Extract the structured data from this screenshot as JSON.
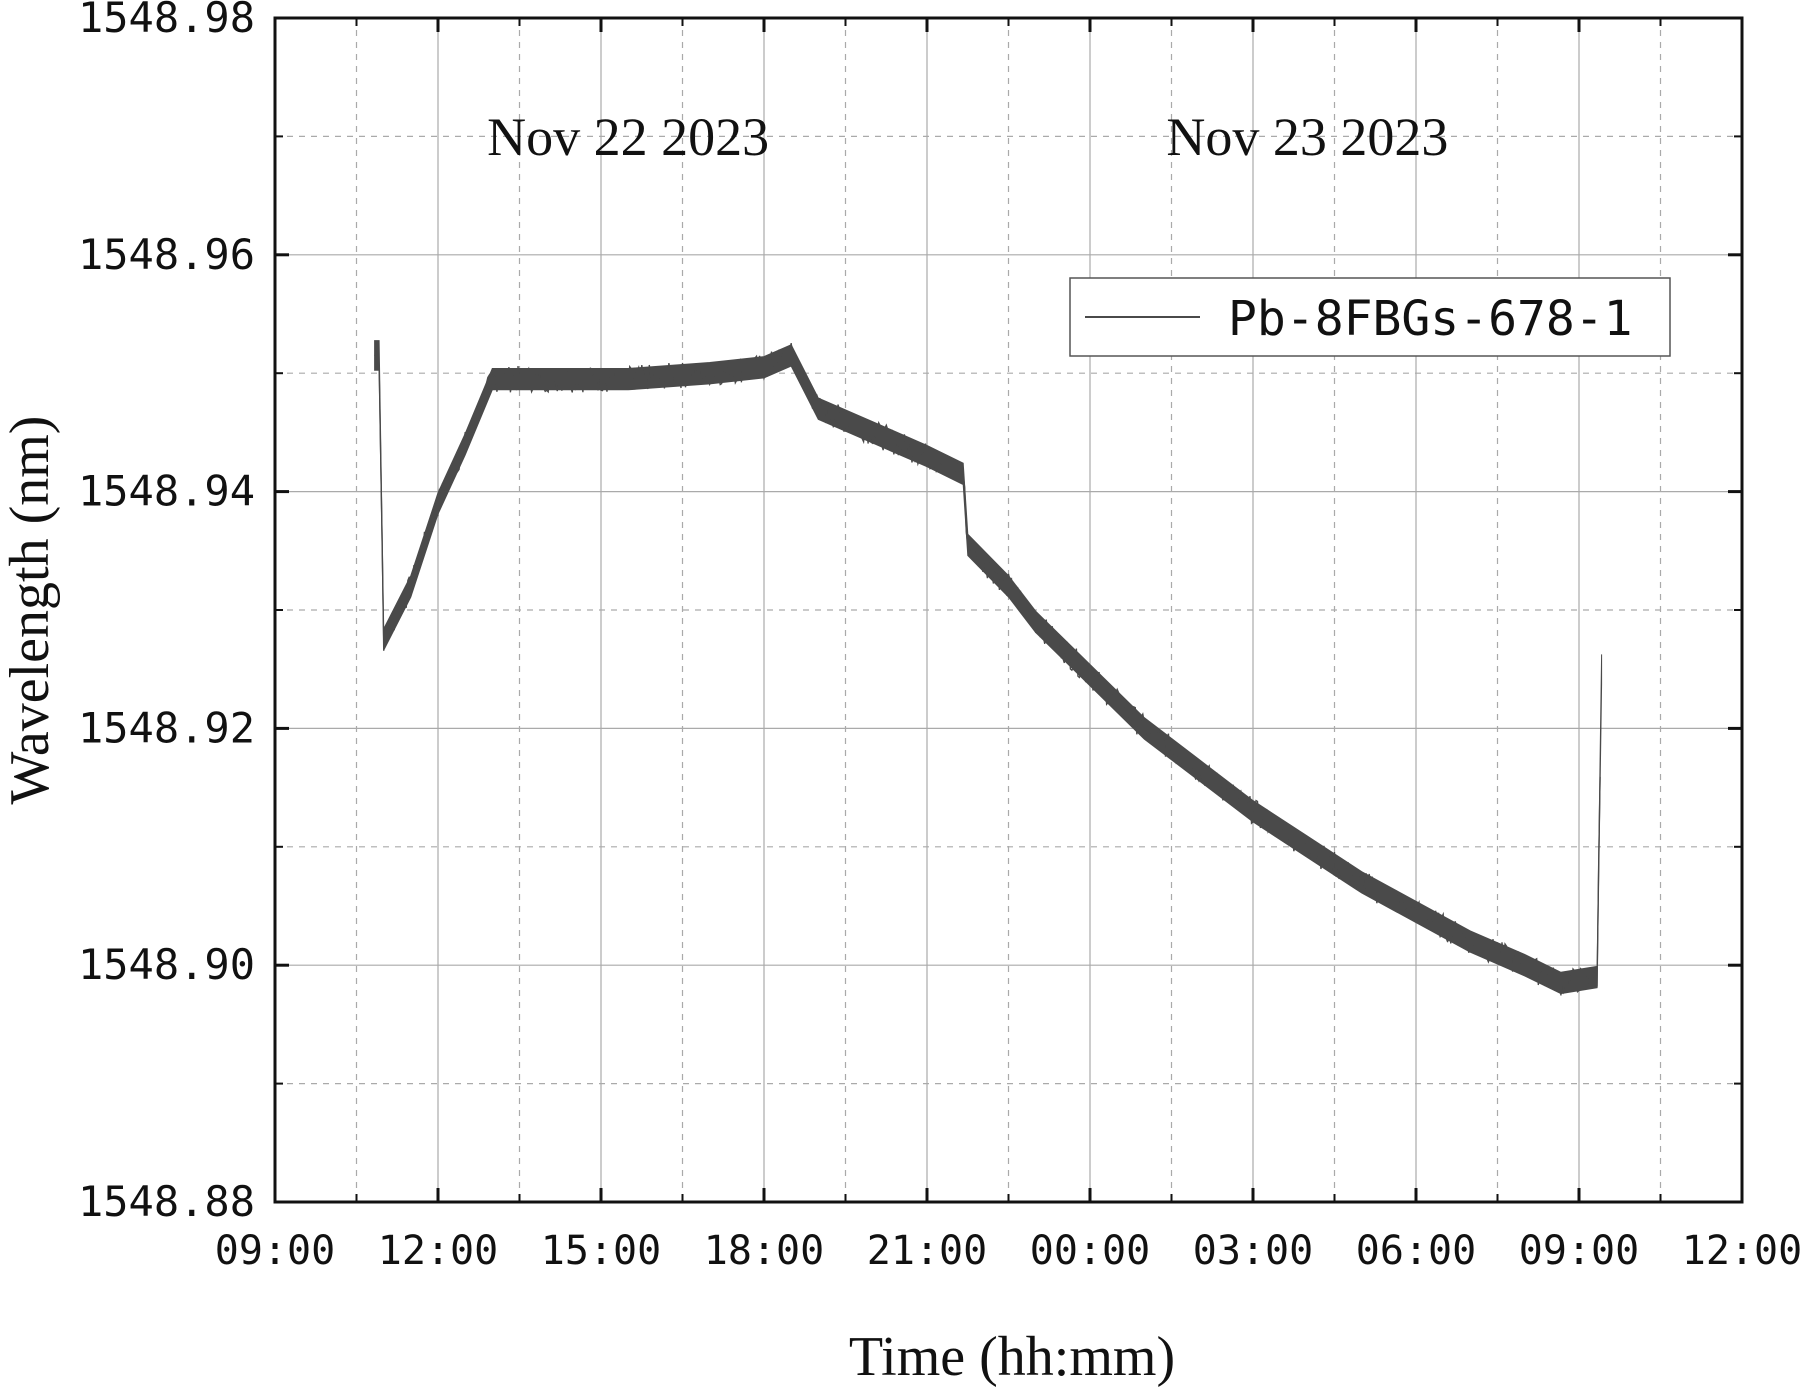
{
  "chart_data": {
    "type": "line",
    "xlabel": "Time (hh:mm)",
    "ylabel": "Wavelength (nm)",
    "xlim": [
      "2023-11-22 09:00",
      "2023-11-23 12:00"
    ],
    "ylim": [
      1548.88,
      1548.98
    ],
    "x_ticks": [
      "09:00",
      "12:00",
      "15:00",
      "18:00",
      "21:00",
      "00:00",
      "03:00",
      "06:00",
      "09:00",
      "12:00"
    ],
    "y_ticks": [
      "1548.88",
      "1548.90",
      "1548.92",
      "1548.94",
      "1548.96",
      "1548.98"
    ],
    "grid": true,
    "legend": {
      "position": "top-right",
      "entries": [
        "Pb-8FBGs-678-1"
      ]
    },
    "annotations": [
      {
        "text": "Nov 22 2023",
        "x": "2023-11-22 15:30"
      },
      {
        "text": "Nov 23 2023",
        "x": "2023-11-23 04:00"
      }
    ],
    "series_color": "#4a4a4a",
    "series": [
      {
        "name": "Pb-8FBGs-678-1",
        "points": [
          {
            "x": "2023-11-22 10:50",
            "y": 1548.9515,
            "spread": 0.0025
          },
          {
            "x": "2023-11-22 10:55",
            "y": 1548.9515,
            "spread": 0.0025
          },
          {
            "x": "2023-11-22 11:00",
            "y": 1548.9275,
            "spread": 0.0018
          },
          {
            "x": "2023-11-22 11:30",
            "y": 1548.932,
            "spread": 0.0018
          },
          {
            "x": "2023-11-22 12:00",
            "y": 1548.939,
            "spread": 0.0018
          },
          {
            "x": "2023-11-22 12:30",
            "y": 1548.944,
            "spread": 0.0018
          },
          {
            "x": "2023-11-22 13:00",
            "y": 1548.9495,
            "spread": 0.0018
          },
          {
            "x": "2023-11-22 14:00",
            "y": 1548.9495,
            "spread": 0.0018
          },
          {
            "x": "2023-11-22 15:30",
            "y": 1548.9495,
            "spread": 0.0018
          },
          {
            "x": "2023-11-22 17:00",
            "y": 1548.95,
            "spread": 0.0018
          },
          {
            "x": "2023-11-22 18:00",
            "y": 1548.9505,
            "spread": 0.0018
          },
          {
            "x": "2023-11-22 18:30",
            "y": 1548.9515,
            "spread": 0.0018
          },
          {
            "x": "2023-11-22 19:00",
            "y": 1548.947,
            "spread": 0.0018
          },
          {
            "x": "2023-11-22 20:00",
            "y": 1548.945,
            "spread": 0.0018
          },
          {
            "x": "2023-11-22 21:00",
            "y": 1548.943,
            "spread": 0.0018
          },
          {
            "x": "2023-11-22 21:40",
            "y": 1548.9415,
            "spread": 0.0018
          },
          {
            "x": "2023-11-22 21:45",
            "y": 1548.9355,
            "spread": 0.0018
          },
          {
            "x": "2023-11-22 22:30",
            "y": 1548.932,
            "spread": 0.0018
          },
          {
            "x": "2023-11-22 23:00",
            "y": 1548.929,
            "spread": 0.0018
          },
          {
            "x": "2023-11-23 00:00",
            "y": 1548.9245,
            "spread": 0.0018
          },
          {
            "x": "2023-11-23 01:00",
            "y": 1548.92,
            "spread": 0.0018
          },
          {
            "x": "2023-11-23 02:00",
            "y": 1548.9165,
            "spread": 0.0018
          },
          {
            "x": "2023-11-23 03:00",
            "y": 1548.913,
            "spread": 0.0018
          },
          {
            "x": "2023-11-23 04:00",
            "y": 1548.91,
            "spread": 0.0018
          },
          {
            "x": "2023-11-23 05:00",
            "y": 1548.907,
            "spread": 0.0018
          },
          {
            "x": "2023-11-23 06:00",
            "y": 1548.9045,
            "spread": 0.0018
          },
          {
            "x": "2023-11-23 07:00",
            "y": 1548.902,
            "spread": 0.0018
          },
          {
            "x": "2023-11-23 08:00",
            "y": 1548.9,
            "spread": 0.0018
          },
          {
            "x": "2023-11-23 08:40",
            "y": 1548.8985,
            "spread": 0.0018
          },
          {
            "x": "2023-11-23 09:20",
            "y": 1548.899,
            "spread": 0.0018
          },
          {
            "x": "2023-11-23 09:25",
            "y": 1548.925,
            "spread": 0.0025
          }
        ]
      }
    ]
  }
}
